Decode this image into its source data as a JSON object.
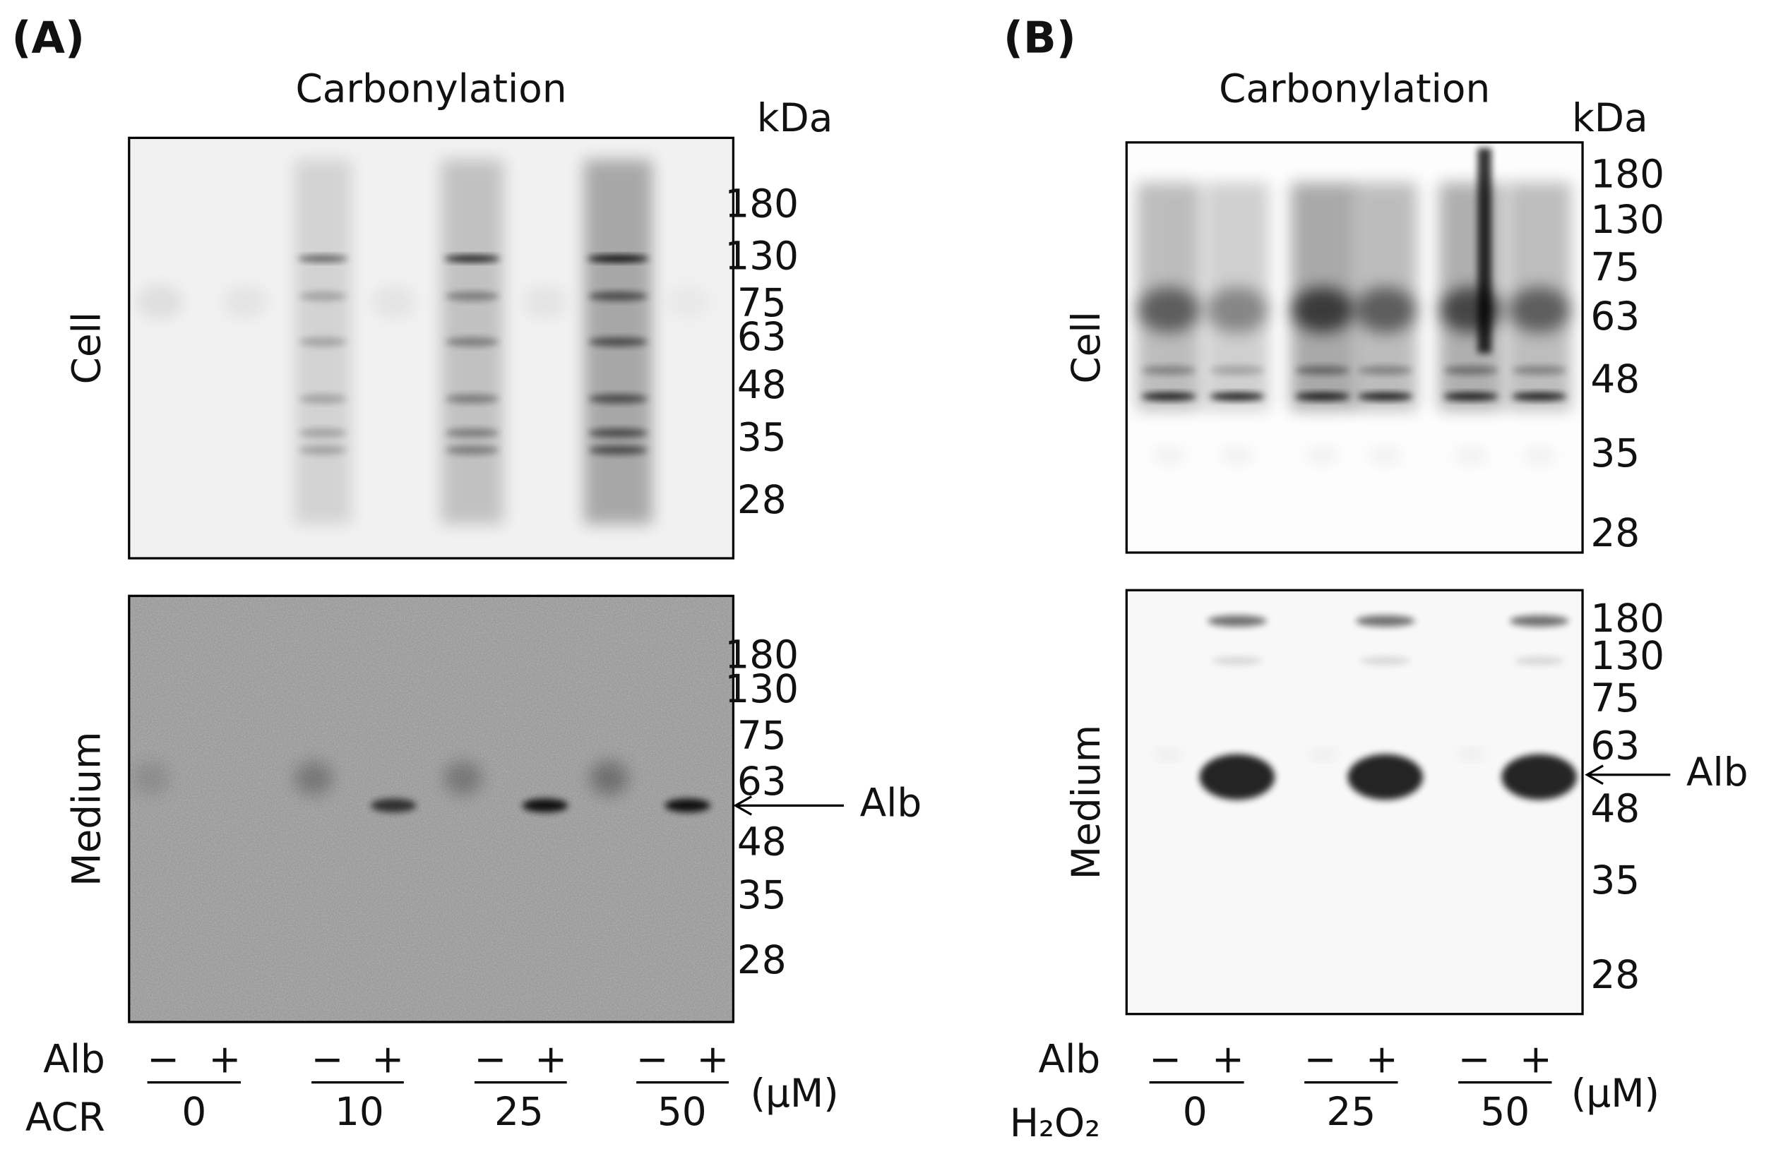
{
  "panels": [
    {
      "label": "(A)",
      "title": "Carbonylation",
      "unit": "kDa",
      "blots": [
        {
          "name": "Cell",
          "markers": [
            "180",
            "130",
            "75",
            "63",
            "48",
            "35",
            "28"
          ]
        },
        {
          "name": "Medium",
          "markers": [
            "180",
            "130",
            "75",
            "63",
            "48",
            "35",
            "28"
          ],
          "arrow": "Alb"
        }
      ],
      "alb_row": {
        "label": "Alb",
        "signs": [
          "−",
          "+",
          "−",
          "+",
          "−",
          "+",
          "−",
          "+"
        ]
      },
      "dose_row": {
        "label": "ACR",
        "doses": [
          "0",
          "10",
          "25",
          "50"
        ],
        "unit": "(μM)"
      }
    },
    {
      "label": "(B)",
      "title": "Carbonylation",
      "unit": "kDa",
      "blots": [
        {
          "name": "Cell",
          "markers": [
            "180",
            "130",
            "75",
            "63",
            "48",
            "35",
            "28"
          ]
        },
        {
          "name": "Medium",
          "markers": [
            "180",
            "130",
            "75",
            "63",
            "48",
            "35",
            "28"
          ],
          "arrow": "Alb"
        }
      ],
      "alb_row": {
        "label": "Alb",
        "signs": [
          "−",
          "+",
          "−",
          "+",
          "−",
          "+"
        ]
      },
      "dose_row": {
        "label": "H₂O₂",
        "doses": [
          "0",
          "25",
          "50"
        ],
        "unit": "(μM)"
      }
    }
  ]
}
